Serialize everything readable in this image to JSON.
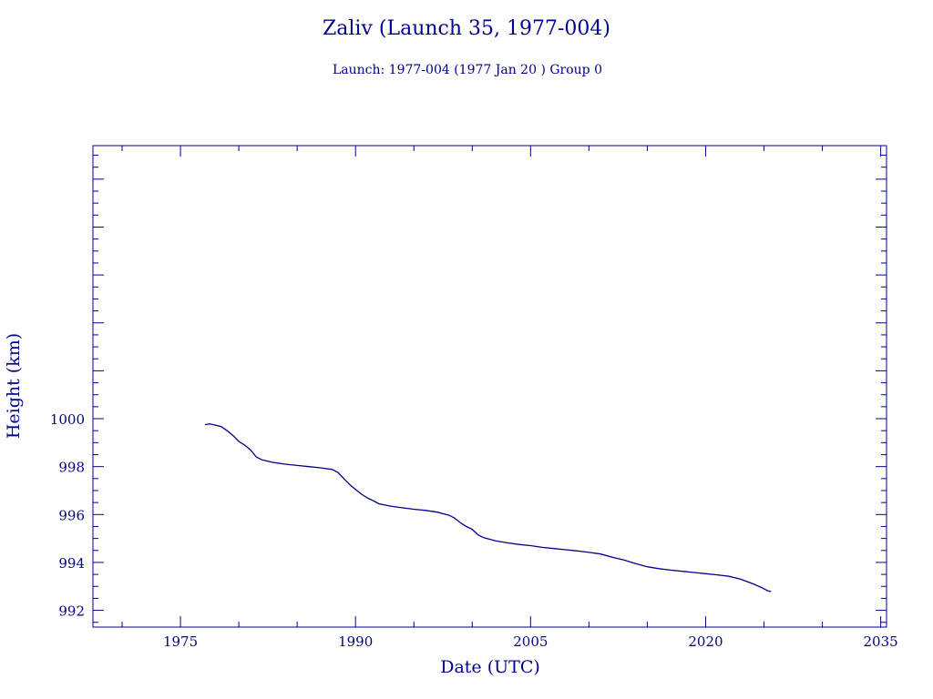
{
  "colors": {
    "ink": "#00008b",
    "background": "#ffffff"
  },
  "title": "Zaliv (Launch 35, 1977-004)",
  "subtitle": "Launch: 1977-004  (1977 Jan 20 )  Group 0",
  "chart_data": {
    "type": "line",
    "title": "Zaliv (Launch 35, 1977-004)",
    "subtitle": "Launch: 1977-004  (1977 Jan 20 )  Group 0",
    "xlabel": "Date (UTC)",
    "ylabel": "Height (km)",
    "xlim": [
      1967.5,
      2035.5
    ],
    "ylim": [
      991.3,
      1011.4
    ],
    "x_ticks": [
      1975,
      1990,
      2005,
      2020,
      2035
    ],
    "x_tick_labels": [
      "1975",
      "1990",
      "2005",
      "2020",
      "2035"
    ],
    "y_ticks": [
      992,
      994,
      996,
      998,
      1000
    ],
    "y_tick_labels": [
      "992",
      "994",
      "996",
      "998",
      "1000"
    ],
    "grid": false,
    "series": [
      {
        "color": "#00008b",
        "points": [
          [
            1977.1,
            999.75
          ],
          [
            1977.5,
            999.78
          ],
          [
            1978.0,
            999.73
          ],
          [
            1978.5,
            999.67
          ],
          [
            1979.0,
            999.5
          ],
          [
            1979.5,
            999.3
          ],
          [
            1980.0,
            999.05
          ],
          [
            1980.5,
            998.9
          ],
          [
            1981.0,
            998.7
          ],
          [
            1981.5,
            998.4
          ],
          [
            1982.0,
            998.28
          ],
          [
            1983.0,
            998.17
          ],
          [
            1984.0,
            998.1
          ],
          [
            1985.0,
            998.05
          ],
          [
            1986.0,
            998.0
          ],
          [
            1987.0,
            997.95
          ],
          [
            1988.0,
            997.88
          ],
          [
            1988.5,
            997.75
          ],
          [
            1989.0,
            997.5
          ],
          [
            1989.5,
            997.25
          ],
          [
            1990.0,
            997.05
          ],
          [
            1990.5,
            996.85
          ],
          [
            1991.0,
            996.7
          ],
          [
            1991.5,
            996.58
          ],
          [
            1992.0,
            996.45
          ],
          [
            1993.0,
            996.35
          ],
          [
            1994.0,
            996.28
          ],
          [
            1995.0,
            996.22
          ],
          [
            1996.0,
            996.17
          ],
          [
            1997.0,
            996.1
          ],
          [
            1998.0,
            995.97
          ],
          [
            1998.5,
            995.85
          ],
          [
            1999.0,
            995.65
          ],
          [
            1999.5,
            995.5
          ],
          [
            2000.0,
            995.38
          ],
          [
            2000.5,
            995.15
          ],
          [
            2001.0,
            995.03
          ],
          [
            2002.0,
            994.9
          ],
          [
            2003.0,
            994.82
          ],
          [
            2004.0,
            994.75
          ],
          [
            2005.0,
            994.7
          ],
          [
            2006.0,
            994.63
          ],
          [
            2007.0,
            994.58
          ],
          [
            2008.0,
            994.53
          ],
          [
            2009.0,
            994.48
          ],
          [
            2010.0,
            994.42
          ],
          [
            2011.0,
            994.35
          ],
          [
            2012.0,
            994.22
          ],
          [
            2013.0,
            994.1
          ],
          [
            2014.0,
            993.95
          ],
          [
            2015.0,
            993.82
          ],
          [
            2016.0,
            993.74
          ],
          [
            2017.0,
            993.68
          ],
          [
            2018.0,
            993.63
          ],
          [
            2019.0,
            993.58
          ],
          [
            2020.0,
            993.53
          ],
          [
            2021.0,
            993.48
          ],
          [
            2022.0,
            993.42
          ],
          [
            2023.0,
            993.3
          ],
          [
            2024.0,
            993.12
          ],
          [
            2024.8,
            992.95
          ],
          [
            2025.3,
            992.82
          ],
          [
            2025.6,
            992.78
          ]
        ]
      }
    ]
  }
}
